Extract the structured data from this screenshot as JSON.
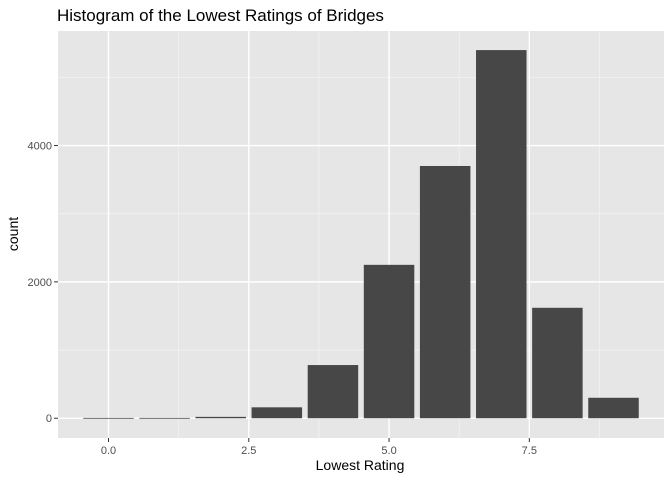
{
  "chart_data": {
    "type": "bar",
    "title": "Histogram of the Lowest Ratings of Bridges",
    "xlabel": "Lowest Rating",
    "ylabel": "count",
    "bin_width": 0.9,
    "x": [
      0,
      1,
      2,
      3,
      4,
      5,
      6,
      7,
      8,
      9
    ],
    "values": [
      5,
      5,
      20,
      160,
      780,
      2250,
      3700,
      5400,
      1620,
      300
    ],
    "xlim": [
      -0.9,
      9.9
    ],
    "ylim": [
      -290,
      5680
    ],
    "x_ticks": [
      {
        "value": 0.0,
        "label": "0.0"
      },
      {
        "value": 2.5,
        "label": "2.5"
      },
      {
        "value": 5.0,
        "label": "5.0"
      },
      {
        "value": 7.5,
        "label": "7.5"
      }
    ],
    "y_ticks": [
      {
        "value": 0,
        "label": "0"
      },
      {
        "value": 2000,
        "label": "2000"
      },
      {
        "value": 4000,
        "label": "4000"
      }
    ],
    "grid": true,
    "legend": "none",
    "colors": {
      "panel": "#e6e6e6",
      "bar": "#474747",
      "grid_major": "#ffffff",
      "grid_minor": "#f2f2f2",
      "tick": "#333333"
    }
  }
}
